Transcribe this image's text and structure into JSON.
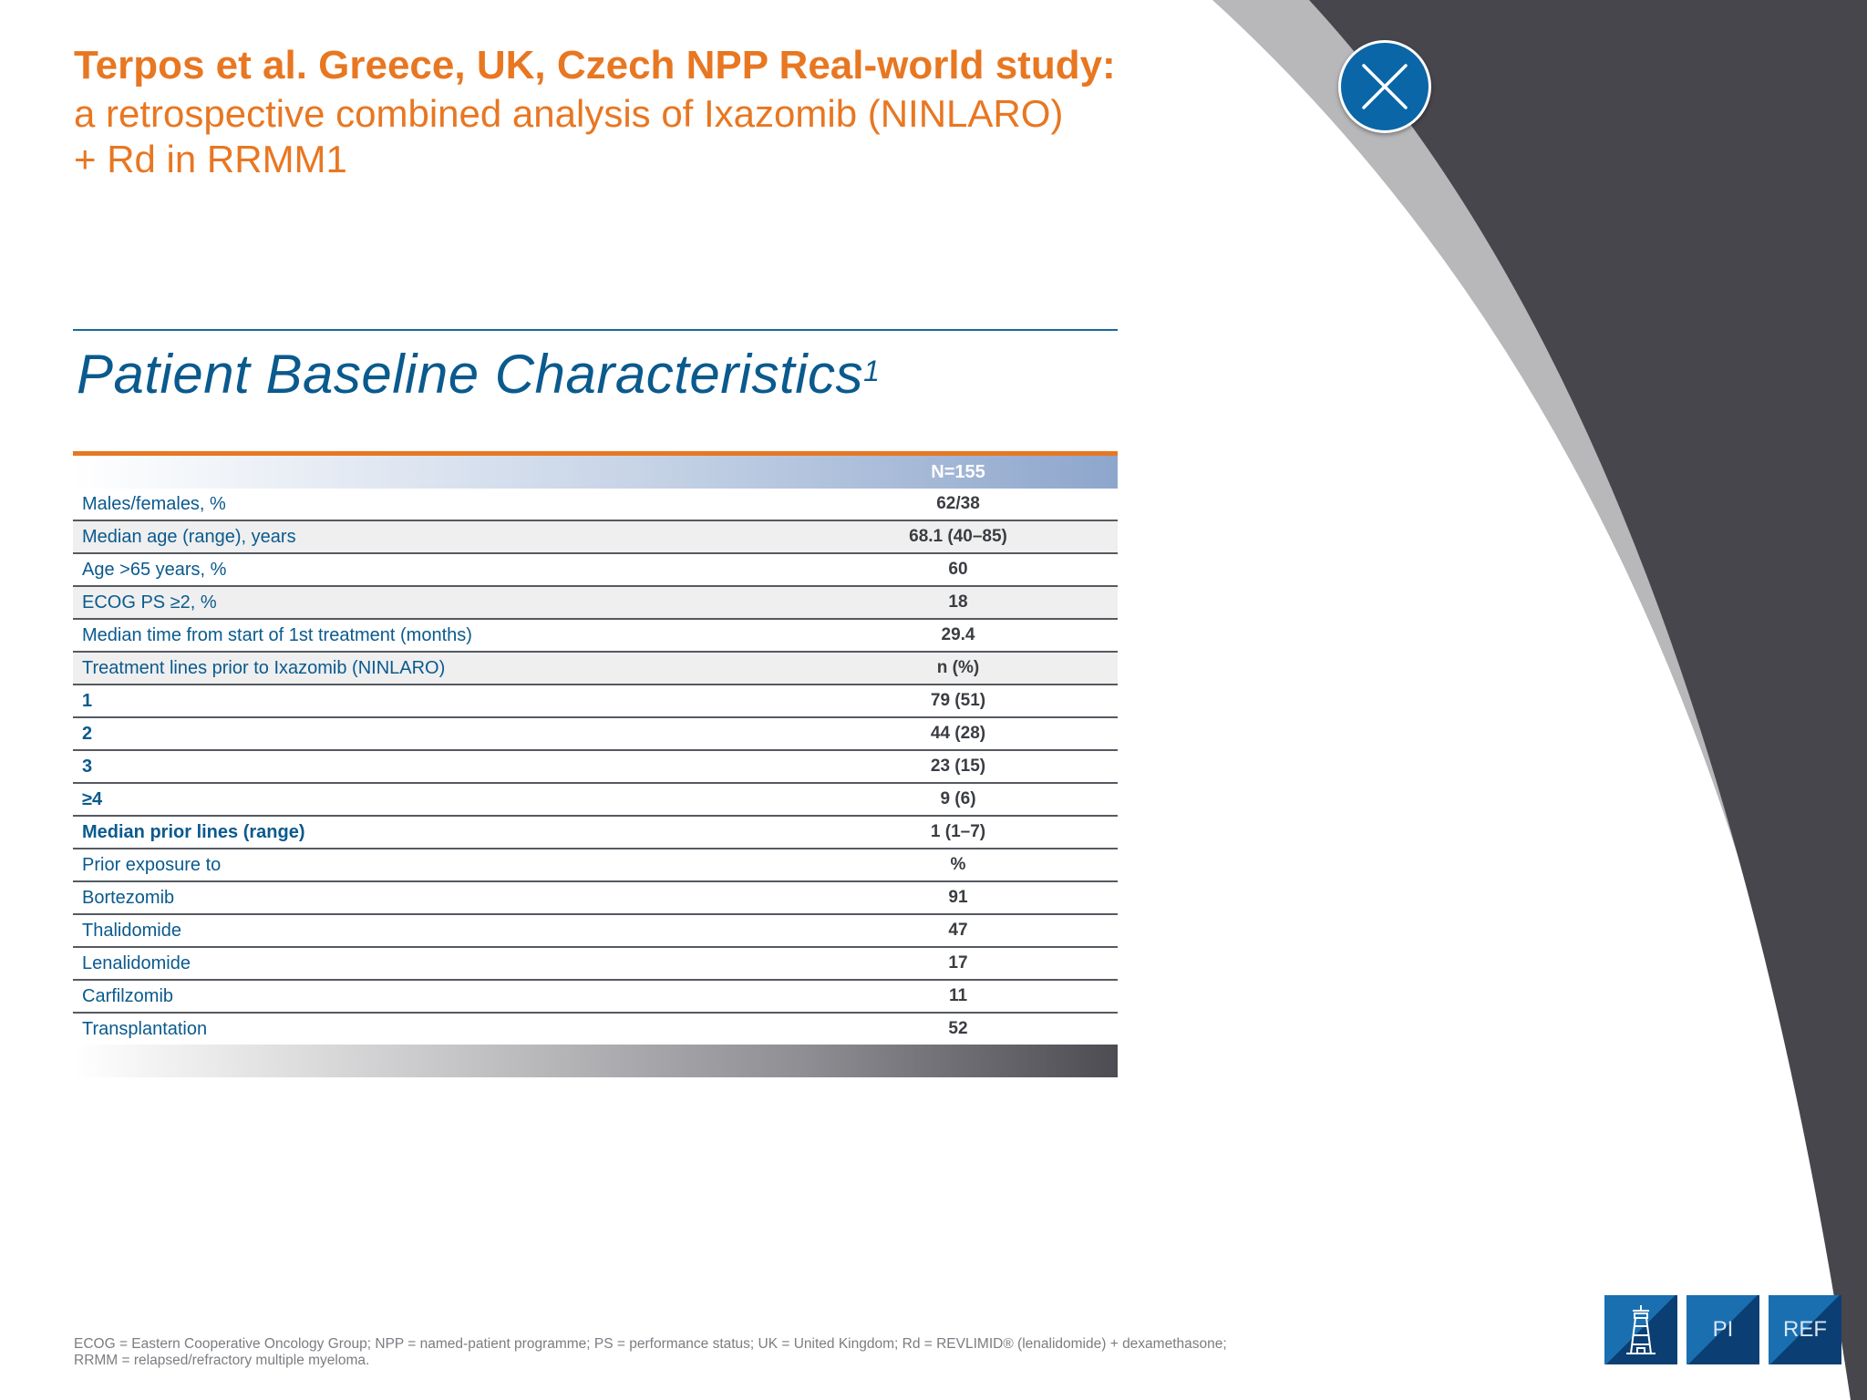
{
  "header": {
    "title": "Terpos et al. Greece, UK, Czech NPP Real-world study:",
    "subtitle_line1": "a retrospective combined analysis of Ixazomib (NINLARO)",
    "subtitle_line2": "+ Rd in RRMM1"
  },
  "section": {
    "title": "Patient Baseline Characteristics",
    "superscript": "1"
  },
  "table": {
    "column_header": "N=155",
    "rows": [
      {
        "label": "Males/females, %",
        "value": "62/38"
      },
      {
        "label": "Median age (range), years",
        "value": "68.1 (40–85)"
      },
      {
        "label": "Age >65 years, %",
        "value": "60"
      },
      {
        "label": "ECOG PS ≥2, %",
        "value": "18"
      },
      {
        "label": "Median time from start of 1st treatment (months)",
        "value": "29.4"
      },
      {
        "label": "Treatment lines prior to Ixazomib (NINLARO)",
        "value": "n (%)"
      },
      {
        "label": "1",
        "value": "79 (51)"
      },
      {
        "label": "2",
        "value": "44 (28)"
      },
      {
        "label": "3",
        "value": "23 (15)"
      },
      {
        "label": "≥4",
        "value": "9 (6)"
      },
      {
        "label": "Median prior lines (range)",
        "value": "1 (1–7)"
      },
      {
        "label": "Prior exposure to",
        "value": "%"
      },
      {
        "label": "Bortezomib",
        "value": "91"
      },
      {
        "label": "Thalidomide",
        "value": "47"
      },
      {
        "label": "Lenalidomide",
        "value": "17"
      },
      {
        "label": "Carfilzomib",
        "value": "11"
      },
      {
        "label": "Transplantation",
        "value": "52"
      }
    ]
  },
  "footnote": {
    "line1": "ECOG = Eastern Cooperative Oncology Group; NPP = named-patient programme; PS = performance status; UK = United Kingdom; Rd = REVLIMID® (lenalidomide) + dexamethasone;",
    "line2": "RRMM = relapsed/refractory multiple myeloma."
  },
  "nav": {
    "home_icon": "lighthouse-icon",
    "pi_label": "PI",
    "ref_label": "REF"
  },
  "icons": {
    "close": "close-icon"
  },
  "colors": {
    "accent_orange": "#e87722",
    "brand_blue": "#0a5a8e",
    "dark_panel": "#47464c",
    "arc_gray": "#b8b8ba"
  }
}
